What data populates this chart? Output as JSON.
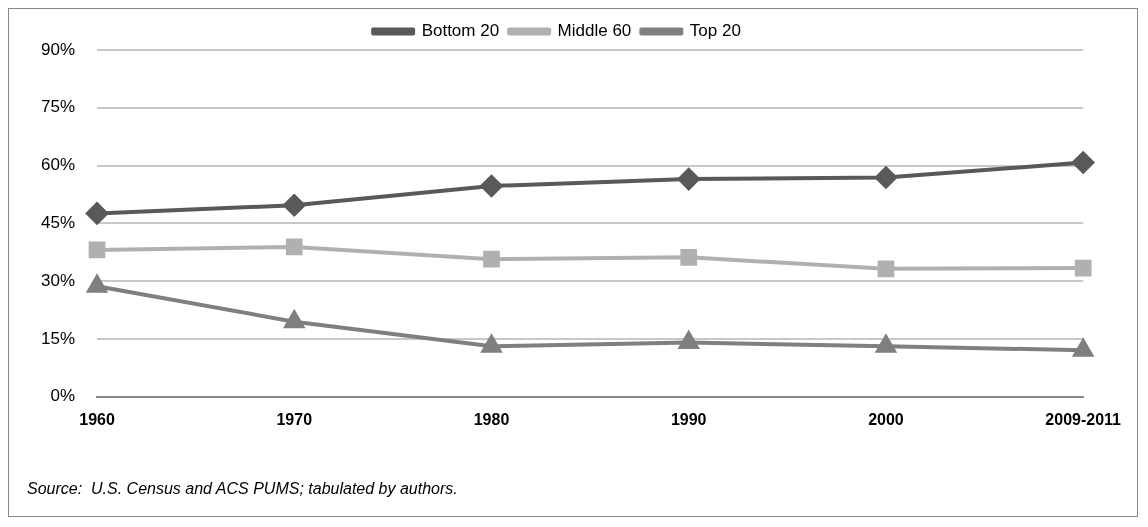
{
  "chart_data": {
    "type": "line",
    "categories": [
      "1960",
      "1970",
      "1980",
      "1990",
      "2000",
      "2009-2011"
    ],
    "series": [
      {
        "name": "Bottom 20",
        "color": "#595959",
        "marker": "diamond",
        "values": [
          47.6,
          49.7,
          54.7,
          56.5,
          56.9,
          60.8
        ]
      },
      {
        "name": "Middle 60",
        "color": "#b0b0b0",
        "marker": "square",
        "values": [
          38.1,
          38.9,
          35.7,
          36.2,
          33.2,
          33.4
        ]
      },
      {
        "name": "Top 20",
        "color": "#7f7f7f",
        "marker": "triangle",
        "values": [
          28.7,
          19.5,
          13.1,
          14.1,
          13.1,
          12.1
        ]
      }
    ],
    "ylim": [
      0,
      90
    ],
    "yticks": [
      {
        "value": 0,
        "label": "0%"
      },
      {
        "value": 15,
        "label": "15%"
      },
      {
        "value": 30,
        "label": "30%"
      },
      {
        "value": 45,
        "label": "45%"
      },
      {
        "value": 60,
        "label": "60%"
      },
      {
        "value": 75,
        "label": "75%"
      },
      {
        "value": 90,
        "label": "90%"
      }
    ],
    "grid": "y",
    "legend": "top",
    "annotations": [
      "Source:  U.S. Census and ACS PUMS; tabulated by authors."
    ]
  }
}
